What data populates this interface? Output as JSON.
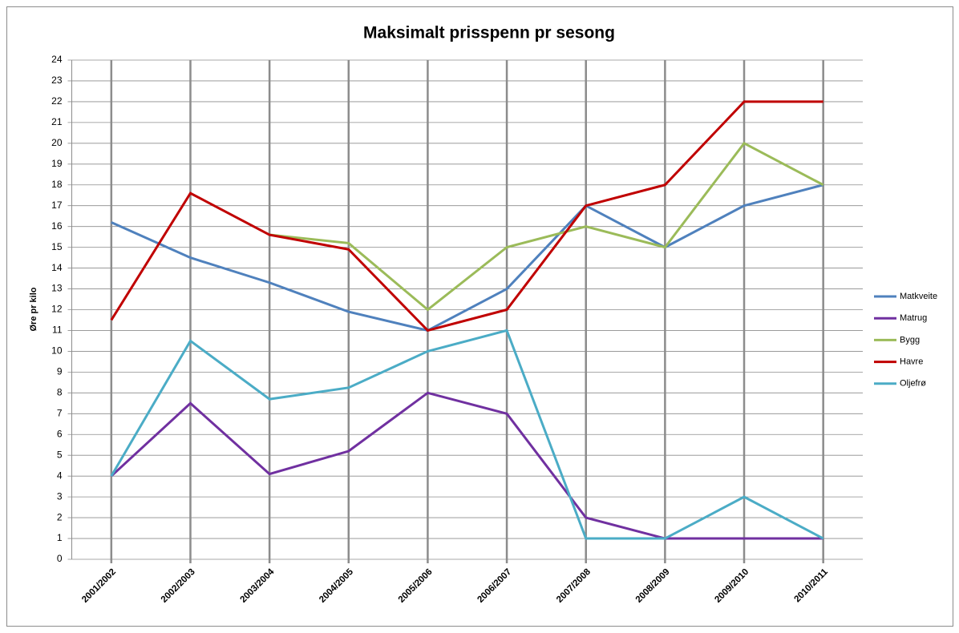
{
  "chart_data": {
    "type": "line",
    "title": "Maksimalt prisspenn pr sesong",
    "y_label": "Øre pr kilo",
    "categories": [
      "2001/2002",
      "2002/2003",
      "2003/2004",
      "2004/2005",
      "2005/2006",
      "2006/2007",
      "2007/2008",
      "2008/2009",
      "2009/2010",
      "2010/2011"
    ],
    "series": [
      {
        "name": "Matkveite",
        "color": "#4f81bd",
        "values": [
          16.2,
          14.5,
          13.3,
          11.9,
          11,
          13,
          17,
          15,
          17,
          18
        ]
      },
      {
        "name": "Matrug",
        "color": "#7030a0",
        "values": [
          4,
          7.5,
          4.1,
          5.2,
          8,
          7,
          2,
          1,
          1,
          1
        ]
      },
      {
        "name": "Bygg",
        "color": "#9bbb59",
        "values": [
          null,
          null,
          15.6,
          15.2,
          12,
          15,
          16,
          15,
          20,
          18
        ]
      },
      {
        "name": "Havre",
        "color": "#c00000",
        "values": [
          11.5,
          17.6,
          15.6,
          14.9,
          11,
          12,
          17,
          18,
          22,
          22
        ]
      },
      {
        "name": "Oljefrø",
        "color": "#4bacc6",
        "values": [
          4,
          10.5,
          7.7,
          8.25,
          10,
          11,
          1,
          1,
          3,
          1
        ]
      }
    ],
    "ylim": [
      0,
      24
    ],
    "yticks": [
      0,
      1,
      2,
      3,
      4,
      5,
      6,
      7,
      8,
      9,
      10,
      11,
      12,
      13,
      14,
      15,
      16,
      17,
      18,
      19,
      20,
      21,
      22,
      23,
      24
    ],
    "grid": true,
    "legend": "right"
  }
}
